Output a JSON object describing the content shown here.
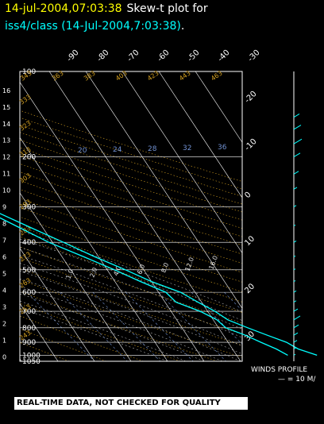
{
  "header": {
    "timestamp": "14-jul-2004,07:03:38",
    "plot_label": "Skew-t plot for",
    "dataset": "iss4/class (14-Jul-2004,7:03:38)",
    "dataset_dot": "."
  },
  "footer": {
    "quality_banner": "REAL-TIME DATA, NOT CHECKED FOR QUALITY",
    "winds_profile": "WINDS PROFILE",
    "winds_scale": "— = 10 M/"
  },
  "colors": {
    "title": "#ffff00",
    "dataset": "#00ffff",
    "temperature": "#00ffff",
    "dewpoint": "#00ffff",
    "isotherm": "#ffffff",
    "isobar": "#ffffff",
    "dry_adiabat": "#d4a020",
    "moist_adiabat": "#e0e0e0",
    "mixing_ratio": "#7090d0"
  },
  "chart_data": {
    "type": "line",
    "title": "Skew-t plot for iss4/class (14-Jul-2004,7:03:38)",
    "pressure_levels": [
      100,
      200,
      300,
      400,
      500,
      600,
      700,
      800,
      900,
      1000,
      1050
    ],
    "pressure_labels": [
      "100",
      "200",
      "300",
      "400",
      "500",
      "600",
      "700",
      "800",
      "900",
      "1000",
      "1050"
    ],
    "height_km_labels": [
      "0",
      "1",
      "2",
      "3",
      "4",
      "5",
      "6",
      "7",
      "8",
      "9",
      "10",
      "11",
      "12",
      "13",
      "14",
      "15",
      "16"
    ],
    "isotherm_top_labels": [
      "-90",
      "-80",
      "-70",
      "-60",
      "-50",
      "-40",
      "-30"
    ],
    "isotherm_right_labels": [
      "-20",
      "-10",
      "0",
      "10",
      "20",
      "30"
    ],
    "mixing_ratio_labels": [
      "20",
      "24",
      "28",
      "32",
      "36"
    ],
    "dry_adiabat_labels": [
      "343",
      "363",
      "383",
      "403",
      "423",
      "443",
      "463",
      "333",
      "323",
      "313",
      "303",
      "293",
      "283",
      "273",
      "263",
      "253",
      "243"
    ],
    "moist_adiabat_labels": [
      "1.0",
      "2.0",
      "4.0",
      "6.0",
      "8.0",
      "12.0",
      "16.0"
    ],
    "series": [
      {
        "name": "temperature",
        "points": [
          [
            1000,
            32
          ],
          [
            950,
            28
          ],
          [
            900,
            26
          ],
          [
            850,
            22
          ],
          [
            800,
            18
          ],
          [
            750,
            14
          ],
          [
            700,
            12
          ],
          [
            650,
            9
          ],
          [
            600,
            6
          ],
          [
            550,
            0
          ],
          [
            500,
            -5
          ],
          [
            450,
            -11
          ],
          [
            400,
            -17
          ],
          [
            350,
            -24
          ],
          [
            300,
            -32
          ],
          [
            250,
            -41
          ],
          [
            210,
            -49
          ],
          [
            180,
            -55
          ],
          [
            160,
            -61
          ],
          [
            140,
            -67
          ]
        ]
      },
      {
        "name": "dewpoint",
        "points": [
          [
            1000,
            24
          ],
          [
            950,
            22
          ],
          [
            900,
            19
          ],
          [
            850,
            16
          ],
          [
            800,
            12
          ],
          [
            750,
            11
          ],
          [
            700,
            8
          ],
          [
            650,
            3
          ],
          [
            600,
            2
          ],
          [
            550,
            -3
          ],
          [
            500,
            -8
          ],
          [
            450,
            -14
          ],
          [
            400,
            -21
          ],
          [
            350,
            -27
          ],
          [
            300,
            -34
          ],
          [
            260,
            -43
          ],
          [
            240,
            -41
          ],
          [
            210,
            -51
          ],
          [
            180,
            -57
          ],
          [
            160,
            -62
          ],
          [
            140,
            -68
          ]
        ]
      }
    ],
    "winds": [
      {
        "p": 1000,
        "len": 2
      },
      {
        "p": 950,
        "len": 3
      },
      {
        "p": 900,
        "len": 4
      },
      {
        "p": 850,
        "len": 5
      },
      {
        "p": 800,
        "len": 6
      },
      {
        "p": 750,
        "len": 8
      },
      {
        "p": 700,
        "len": 5
      },
      {
        "p": 650,
        "len": 3
      },
      {
        "p": 600,
        "len": 3
      },
      {
        "p": 550,
        "len": 2
      },
      {
        "p": 500,
        "len": 2
      },
      {
        "p": 450,
        "len": 2
      },
      {
        "p": 400,
        "len": 3
      },
      {
        "p": 350,
        "len": 2
      },
      {
        "p": 300,
        "len": 3
      },
      {
        "p": 260,
        "len": 4
      },
      {
        "p": 230,
        "len": 6
      },
      {
        "p": 200,
        "len": 8
      },
      {
        "p": 180,
        "len": 10
      },
      {
        "p": 160,
        "len": 9
      },
      {
        "p": 145,
        "len": 7
      }
    ],
    "ylim": [
      1050,
      100
    ],
    "xlim": [
      -40,
      40
    ],
    "grid": true
  }
}
